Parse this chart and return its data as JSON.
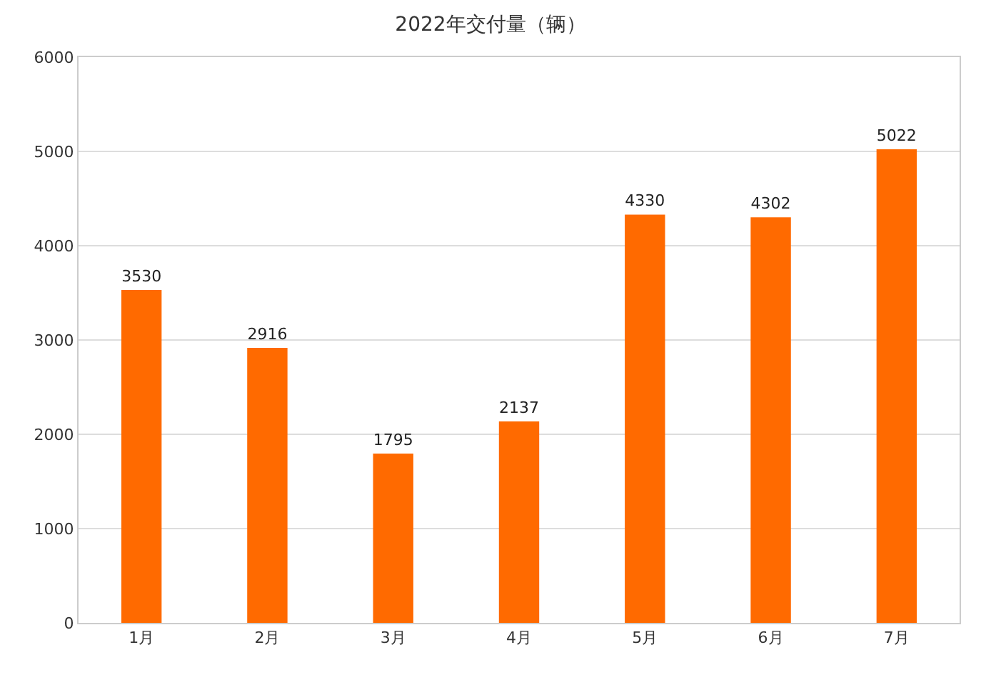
{
  "chart_data": {
    "type": "bar",
    "title": "2022年交付量（辆）",
    "categories": [
      "1月",
      "2月",
      "3月",
      "4月",
      "5月",
      "6月",
      "7月"
    ],
    "values": [
      3530,
      2916,
      1795,
      2137,
      4330,
      4302,
      5022
    ],
    "color": "#ff6a00",
    "ylim": [
      0,
      6000
    ],
    "yticks": [
      0,
      1000,
      2000,
      3000,
      4000,
      5000,
      6000
    ],
    "grid": "y",
    "data_labels": true
  }
}
